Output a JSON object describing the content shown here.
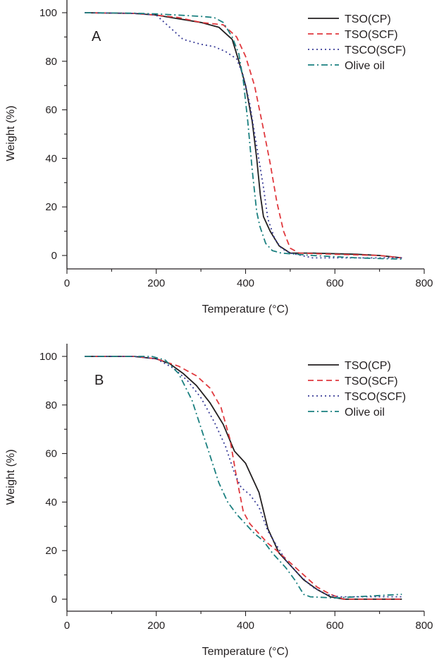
{
  "chart_data": [
    {
      "type": "line",
      "panel_label": "A",
      "xlabel": "Temperature (°C)",
      "ylabel": "Weight (%)",
      "xlim": [
        0,
        800
      ],
      "ylim": [
        -5,
        100
      ],
      "xticks": [
        0,
        200,
        400,
        600,
        800
      ],
      "yticks": [
        0,
        20,
        40,
        60,
        80,
        100
      ],
      "grid": false,
      "legend_position": "top-right",
      "series": [
        {
          "name": "TSO(CP)",
          "color": "#231f20",
          "dash": "solid",
          "points": [
            [
              40,
              100
            ],
            [
              150,
              99.7
            ],
            [
              200,
              99
            ],
            [
              250,
              97.5
            ],
            [
              300,
              96
            ],
            [
              340,
              94
            ],
            [
              370,
              89
            ],
            [
              385,
              80
            ],
            [
              400,
              70
            ],
            [
              415,
              55
            ],
            [
              425,
              40
            ],
            [
              433,
              25
            ],
            [
              440,
              16
            ],
            [
              455,
              10
            ],
            [
              475,
              4
            ],
            [
              500,
              1
            ],
            [
              550,
              1
            ],
            [
              650,
              0.5
            ],
            [
              700,
              0
            ],
            [
              750,
              -1
            ]
          ]
        },
        {
          "name": "TSO(SCF)",
          "color": "#e0393e",
          "dash": "8,5",
          "points": [
            [
              40,
              100
            ],
            [
              150,
              99.7
            ],
            [
              200,
              99
            ],
            [
              250,
              98
            ],
            [
              300,
              96
            ],
            [
              350,
              95
            ],
            [
              380,
              90
            ],
            [
              400,
              82
            ],
            [
              420,
              70
            ],
            [
              440,
              52
            ],
            [
              455,
              38
            ],
            [
              470,
              22
            ],
            [
              485,
              10
            ],
            [
              500,
              3
            ],
            [
              520,
              1
            ],
            [
              600,
              0.5
            ],
            [
              700,
              0
            ],
            [
              750,
              -1
            ]
          ]
        },
        {
          "name": "TSCO(SCF)",
          "color": "#3a3d98",
          "dash": "2,4",
          "points": [
            [
              40,
              100
            ],
            [
              150,
              99.7
            ],
            [
              200,
              99
            ],
            [
              230,
              94
            ],
            [
              260,
              89
            ],
            [
              300,
              87
            ],
            [
              330,
              86
            ],
            [
              355,
              84
            ],
            [
              380,
              81
            ],
            [
              395,
              74
            ],
            [
              410,
              62
            ],
            [
              425,
              45
            ],
            [
              440,
              28
            ],
            [
              450,
              15
            ],
            [
              465,
              7
            ],
            [
              480,
              3
            ],
            [
              500,
              1
            ],
            [
              550,
              -1
            ],
            [
              650,
              -1
            ],
            [
              750,
              -1
            ]
          ]
        },
        {
          "name": "Olive oil",
          "color": "#1b8080",
          "dash": "9,4,2,4",
          "points": [
            [
              40,
              100
            ],
            [
              150,
              99.8
            ],
            [
              200,
              99.5
            ],
            [
              250,
              99
            ],
            [
              300,
              98.5
            ],
            [
              330,
              98
            ],
            [
              350,
              96
            ],
            [
              370,
              90
            ],
            [
              385,
              83
            ],
            [
              395,
              72
            ],
            [
              405,
              55
            ],
            [
              415,
              35
            ],
            [
              425,
              18
            ],
            [
              432,
              12
            ],
            [
              445,
              5
            ],
            [
              460,
              2
            ],
            [
              480,
              1
            ],
            [
              550,
              0
            ],
            [
              650,
              -1
            ],
            [
              750,
              -1.5
            ]
          ]
        }
      ]
    },
    {
      "type": "line",
      "panel_label": "B",
      "xlabel": "Temperature (°C)",
      "ylabel": "Weight (%)",
      "xlim": [
        0,
        800
      ],
      "ylim": [
        -5,
        105
      ],
      "xticks": [
        0,
        200,
        400,
        600,
        800
      ],
      "yticks": [
        0,
        20,
        40,
        60,
        80,
        100
      ],
      "grid": false,
      "legend_position": "top-right",
      "series": [
        {
          "name": "TSO(CP)",
          "color": "#231f20",
          "dash": "solid",
          "points": [
            [
              40,
              100
            ],
            [
              150,
              100
            ],
            [
              200,
              99
            ],
            [
              230,
              97
            ],
            [
              260,
              93
            ],
            [
              290,
              88
            ],
            [
              320,
              81
            ],
            [
              350,
              72
            ],
            [
              375,
              61
            ],
            [
              400,
              56
            ],
            [
              410,
              52
            ],
            [
              430,
              44
            ],
            [
              450,
              29
            ],
            [
              465,
              23
            ],
            [
              475,
              19
            ],
            [
              500,
              14
            ],
            [
              530,
              8
            ],
            [
              560,
              4
            ],
            [
              590,
              1
            ],
            [
              620,
              0
            ],
            [
              700,
              0
            ],
            [
              750,
              0
            ]
          ]
        },
        {
          "name": "TSO(SCF)",
          "color": "#e0393e",
          "dash": "8,5",
          "points": [
            [
              40,
              100
            ],
            [
              150,
              100
            ],
            [
              200,
              99
            ],
            [
              250,
              96
            ],
            [
              290,
              92
            ],
            [
              320,
              87
            ],
            [
              345,
              79
            ],
            [
              365,
              66
            ],
            [
              380,
              50
            ],
            [
              395,
              36
            ],
            [
              410,
              31
            ],
            [
              430,
              27
            ],
            [
              450,
              23
            ],
            [
              470,
              20
            ],
            [
              500,
              15
            ],
            [
              530,
              10
            ],
            [
              560,
              5
            ],
            [
              590,
              2
            ],
            [
              620,
              0
            ],
            [
              700,
              0
            ],
            [
              750,
              0
            ]
          ]
        },
        {
          "name": "TSCO(SCF)",
          "color": "#3a3d98",
          "dash": "2,4",
          "points": [
            [
              40,
              100
            ],
            [
              150,
              100
            ],
            [
              200,
              99
            ],
            [
              240,
              95
            ],
            [
              270,
              90
            ],
            [
              300,
              83
            ],
            [
              330,
              73
            ],
            [
              355,
              63
            ],
            [
              375,
              52
            ],
            [
              390,
              46
            ],
            [
              410,
              43
            ],
            [
              430,
              38
            ],
            [
              450,
              28
            ],
            [
              470,
              22
            ],
            [
              490,
              16
            ],
            [
              520,
              10
            ],
            [
              550,
              5
            ],
            [
              580,
              2
            ],
            [
              610,
              1
            ],
            [
              700,
              1
            ],
            [
              750,
              1
            ]
          ]
        },
        {
          "name": "Olive oil",
          "color": "#1b8080",
          "dash": "9,4,2,4",
          "points": [
            [
              40,
              100
            ],
            [
              150,
              100
            ],
            [
              190,
              100
            ],
            [
              220,
              98.5
            ],
            [
              250,
              93
            ],
            [
              280,
              82
            ],
            [
              310,
              65
            ],
            [
              340,
              48
            ],
            [
              360,
              40
            ],
            [
              380,
              35
            ],
            [
              400,
              31
            ],
            [
              420,
              27
            ],
            [
              440,
              24
            ],
            [
              460,
              19
            ],
            [
              490,
              13
            ],
            [
              510,
              8
            ],
            [
              530,
              2
            ],
            [
              545,
              1
            ],
            [
              600,
              0.5
            ],
            [
              700,
              1.5
            ],
            [
              750,
              2
            ]
          ]
        }
      ]
    }
  ]
}
